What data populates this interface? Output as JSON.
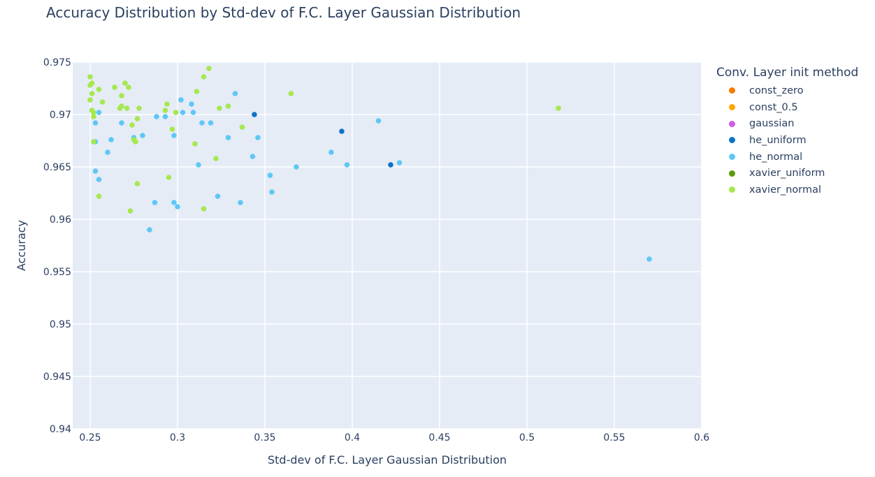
{
  "chart_data": {
    "type": "scatter",
    "title": "Accuracy Distribution by Std-dev of F.C. Layer Gaussian Distribution",
    "xlabel": "Std-dev of F.C. Layer Gaussian Distribution",
    "ylabel": "Accuracy",
    "xlim": [
      0.24,
      0.6
    ],
    "ylim": [
      0.94,
      0.975
    ],
    "x_ticks": [
      "0.25",
      "0.3",
      "0.35",
      "0.4",
      "0.45",
      "0.5",
      "0.55",
      "0.6"
    ],
    "x_tick_values": [
      0.25,
      0.3,
      0.35,
      0.4,
      0.45,
      0.5,
      0.55,
      0.6
    ],
    "y_ticks": [
      "0.94",
      "0.945",
      "0.95",
      "0.955",
      "0.96",
      "0.965",
      "0.97",
      "0.975"
    ],
    "y_tick_values": [
      0.94,
      0.945,
      0.95,
      0.955,
      0.96,
      0.965,
      0.97,
      0.975
    ],
    "grid": true,
    "plot_background": "#e5ecf6",
    "legend_title": "Conv. Layer init method",
    "legend_placement": "right",
    "series": [
      {
        "name": "const_zero",
        "color": "#f57c00",
        "points": []
      },
      {
        "name": "const_0.5",
        "color": "#ffa500",
        "points": []
      },
      {
        "name": "gaussian",
        "color": "#d15ce5",
        "points": []
      },
      {
        "name": "he_uniform",
        "color": "#0d73c8",
        "points": [
          [
            0.344,
            0.97
          ],
          [
            0.394,
            0.9684
          ],
          [
            0.422,
            0.9652
          ]
        ]
      },
      {
        "name": "he_normal",
        "color": "#5ec8f5",
        "points": [
          [
            0.253,
            0.9692
          ],
          [
            0.255,
            0.9702
          ],
          [
            0.253,
            0.9674
          ],
          [
            0.253,
            0.9646
          ],
          [
            0.255,
            0.9638
          ],
          [
            0.26,
            0.9664
          ],
          [
            0.262,
            0.9676
          ],
          [
            0.268,
            0.9692
          ],
          [
            0.275,
            0.9678
          ],
          [
            0.28,
            0.968
          ],
          [
            0.284,
            0.959
          ],
          [
            0.287,
            0.9616
          ],
          [
            0.288,
            0.9698
          ],
          [
            0.293,
            0.9698
          ],
          [
            0.298,
            0.968
          ],
          [
            0.298,
            0.9616
          ],
          [
            0.3,
            0.9612
          ],
          [
            0.302,
            0.9714
          ],
          [
            0.303,
            0.9702
          ],
          [
            0.308,
            0.971
          ],
          [
            0.309,
            0.9702
          ],
          [
            0.312,
            0.9652
          ],
          [
            0.314,
            0.9692
          ],
          [
            0.319,
            0.9692
          ],
          [
            0.323,
            0.9622
          ],
          [
            0.329,
            0.9678
          ],
          [
            0.333,
            0.972
          ],
          [
            0.336,
            0.9616
          ],
          [
            0.343,
            0.966
          ],
          [
            0.346,
            0.9678
          ],
          [
            0.353,
            0.9642
          ],
          [
            0.354,
            0.9626
          ],
          [
            0.368,
            0.965
          ],
          [
            0.388,
            0.9664
          ],
          [
            0.397,
            0.9652
          ],
          [
            0.415,
            0.9694
          ],
          [
            0.427,
            0.9654
          ],
          [
            0.57,
            0.9562
          ]
        ]
      },
      {
        "name": "xavier_uniform",
        "color": "#5d9c0a",
        "points": []
      },
      {
        "name": "xavier_normal",
        "color": "#a6e84e",
        "points": [
          [
            0.25,
            0.9736
          ],
          [
            0.25,
            0.9728
          ],
          [
            0.251,
            0.973
          ],
          [
            0.25,
            0.9714
          ],
          [
            0.251,
            0.972
          ],
          [
            0.251,
            0.9704
          ],
          [
            0.252,
            0.9702
          ],
          [
            0.252,
            0.9698
          ],
          [
            0.252,
            0.9674
          ],
          [
            0.255,
            0.9724
          ],
          [
            0.255,
            0.9622
          ],
          [
            0.257,
            0.9712
          ],
          [
            0.264,
            0.9726
          ],
          [
            0.267,
            0.9706
          ],
          [
            0.268,
            0.9718
          ],
          [
            0.268,
            0.9708
          ],
          [
            0.27,
            0.973
          ],
          [
            0.271,
            0.9706
          ],
          [
            0.272,
            0.9726
          ],
          [
            0.273,
            0.9608
          ],
          [
            0.274,
            0.969
          ],
          [
            0.275,
            0.9676
          ],
          [
            0.276,
            0.9674
          ],
          [
            0.277,
            0.9696
          ],
          [
            0.277,
            0.9634
          ],
          [
            0.278,
            0.9706
          ],
          [
            0.293,
            0.9704
          ],
          [
            0.294,
            0.971
          ],
          [
            0.295,
            0.964
          ],
          [
            0.297,
            0.9686
          ],
          [
            0.299,
            0.9702
          ],
          [
            0.31,
            0.9672
          ],
          [
            0.311,
            0.9722
          ],
          [
            0.315,
            0.9736
          ],
          [
            0.315,
            0.961
          ],
          [
            0.318,
            0.9744
          ],
          [
            0.322,
            0.9658
          ],
          [
            0.324,
            0.9706
          ],
          [
            0.329,
            0.9708
          ],
          [
            0.337,
            0.9688
          ],
          [
            0.365,
            0.972
          ],
          [
            0.518,
            0.9706
          ]
        ]
      }
    ]
  }
}
